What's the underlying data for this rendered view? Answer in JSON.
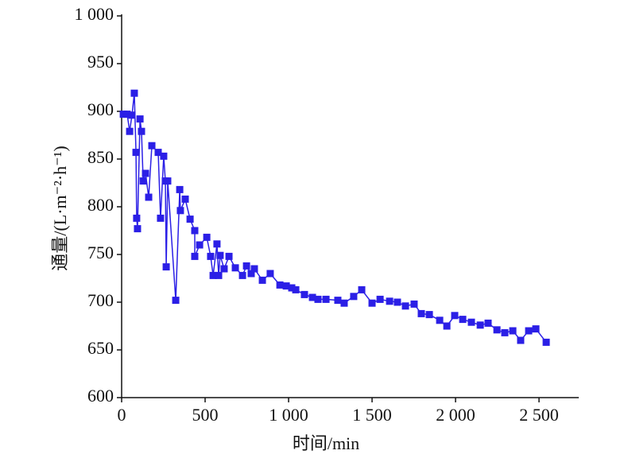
{
  "chart_data": {
    "type": "line",
    "xlabel": "时间/min",
    "ylabel": "通量/(L·m⁻²·h⁻¹)",
    "x": [
      10,
      33,
      48,
      62,
      76,
      86,
      90,
      95,
      110,
      119,
      129,
      143,
      162,
      181,
      219,
      233,
      252,
      262,
      267,
      276,
      324,
      348,
      352,
      381,
      410,
      438,
      438,
      467,
      510,
      533,
      548,
      571,
      581,
      590,
      614,
      643,
      681,
      724,
      748,
      776,
      795,
      843,
      890,
      948,
      986,
      1019,
      1043,
      1095,
      1143,
      1176,
      1224,
      1295,
      1333,
      1390,
      1438,
      1500,
      1548,
      1605,
      1652,
      1700,
      1752,
      1795,
      1843,
      1905,
      1948,
      1995,
      2043,
      2095,
      2148,
      2195,
      2248,
      2295,
      2343,
      2390,
      2438,
      2481,
      2543
    ],
    "values": [
      897,
      897,
      879,
      896,
      919,
      857,
      788,
      777,
      892,
      879,
      827,
      835,
      810,
      864,
      857,
      788,
      853,
      827,
      737,
      827,
      702,
      818,
      796,
      808,
      787,
      775,
      748,
      760,
      768,
      748,
      728,
      761,
      728,
      749,
      735,
      748,
      736,
      728,
      738,
      730,
      735,
      723,
      730,
      718,
      717,
      715,
      713,
      708,
      705,
      703,
      703,
      702,
      699,
      706,
      713,
      699,
      703,
      701,
      700,
      696,
      698,
      688,
      687,
      681,
      675,
      686,
      682,
      679,
      676,
      678,
      671,
      668,
      670,
      660,
      670,
      672,
      658
    ],
    "color": "#2b1fe6",
    "xlim": [
      0,
      2738
    ],
    "xticks": [
      0,
      500,
      {
        "value": 1000,
        "label": "1 000"
      },
      {
        "value": 1500,
        "label": "1 500"
      },
      {
        "value": 2000,
        "label": "2 000"
      },
      {
        "value": 2500,
        "label": "2 500"
      }
    ],
    "ylim": [
      600,
      1000
    ],
    "yticks": [
      600,
      650,
      700,
      750,
      800,
      850,
      900,
      950,
      {
        "value": 1000,
        "label": "1 000"
      }
    ]
  }
}
